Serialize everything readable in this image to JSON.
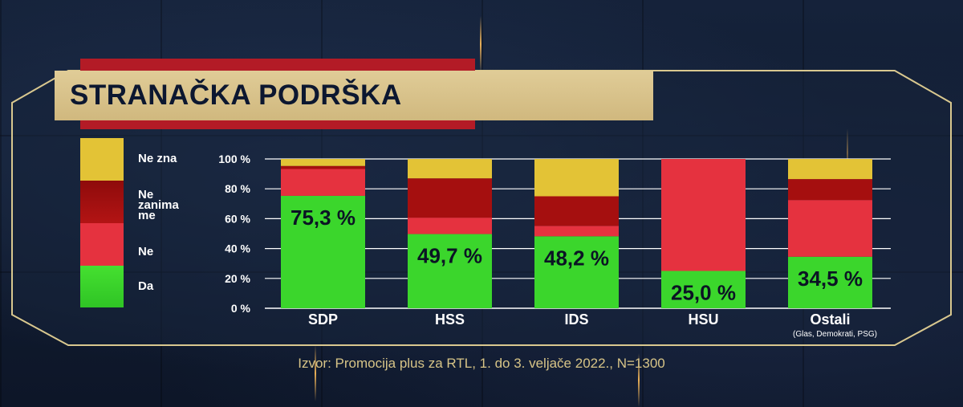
{
  "title": "STRANAČKA PODRŠKA",
  "source": "Izvor: Promocija plus za RTL, 1. do 3. veljače 2022., N=1300",
  "legend": [
    {
      "label": "Ne zna",
      "color": "#e3c336"
    },
    {
      "label": "Ne zanima me",
      "color": "#a50f0f"
    },
    {
      "label": "Ne",
      "color": "#e5323f"
    },
    {
      "label": "Da",
      "color": "#3bd62c"
    }
  ],
  "chart_data": {
    "type": "bar",
    "stacked": true,
    "categories": [
      "SDP",
      "HSS",
      "IDS",
      "HSU",
      "Ostali"
    ],
    "category_notes": [
      "",
      "",
      "",
      "",
      "(Glas, Demokrati, PSG)"
    ],
    "yticks": [
      "0 %",
      "20 %",
      "40 %",
      "60 %",
      "80 %",
      "100 %"
    ],
    "ylim": [
      0,
      100
    ],
    "grid": true,
    "series": [
      {
        "name": "Da",
        "color": "#3bd62c",
        "values": [
          75.3,
          49.7,
          48.2,
          25.0,
          34.5
        ],
        "labels": [
          "75,3 %",
          "49,7 %",
          "48,2 %",
          "25,0 %",
          "34,5 %"
        ]
      },
      {
        "name": "Ne",
        "color": "#e5323f",
        "values": [
          18.0,
          11.0,
          7.0,
          75.0,
          38.0
        ]
      },
      {
        "name": "Ne zanima me",
        "color": "#a50f0f",
        "values": [
          2.0,
          26.3,
          19.8,
          0,
          14.0
        ]
      },
      {
        "name": "Ne zna",
        "color": "#e3c336",
        "values": [
          4.7,
          13.0,
          25.0,
          0,
          13.5
        ]
      }
    ]
  }
}
